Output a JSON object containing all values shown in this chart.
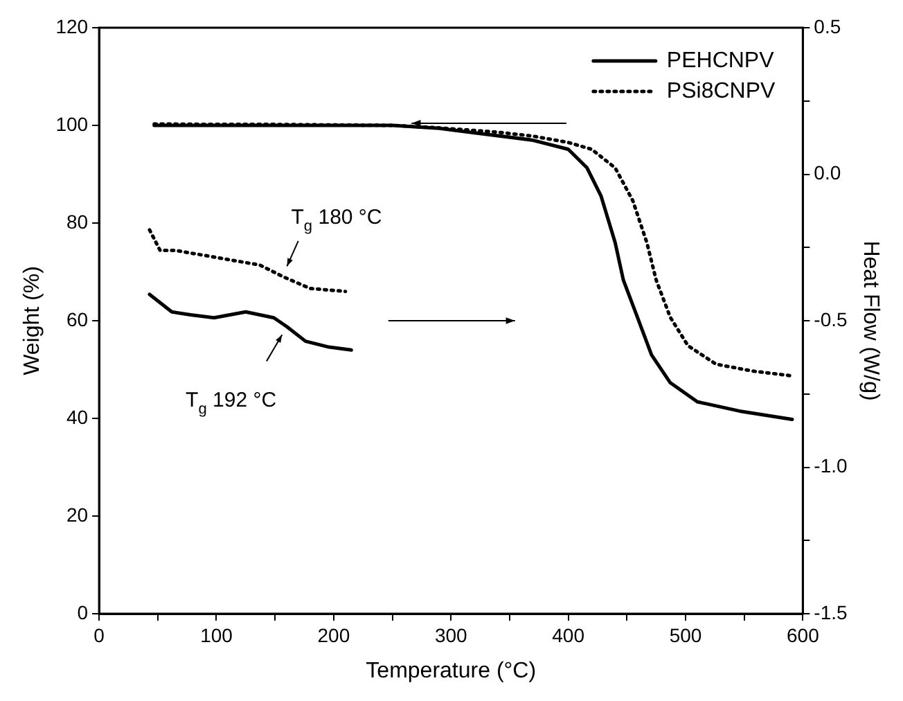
{
  "chart_data": {
    "type": "line",
    "xlabel": "Temperature (°C)",
    "ylabel": "Weight (%)",
    "y2label": "Heat Flow (W/g)",
    "xlim": [
      0,
      600
    ],
    "xticks": [
      0,
      {
        "value": 50,
        "label": null
      },
      100,
      {
        "value": 150,
        "label": null
      },
      200,
      {
        "value": 250,
        "label": null
      },
      300,
      {
        "value": 350,
        "label": null
      },
      400,
      {
        "value": 450,
        "label": null
      },
      500,
      {
        "value": 550,
        "label": null
      },
      600
    ],
    "ylim": [
      0,
      120
    ],
    "yticks": [
      0,
      20,
      40,
      60,
      80,
      100,
      120
    ],
    "y2lim": [
      -1.5,
      0.5
    ],
    "y2ticks": [
      {
        "value": -1.5,
        "label": "-1.5"
      },
      {
        "value": -1.25,
        "label": null
      },
      {
        "value": -1,
        "label": "-1.0"
      },
      {
        "value": -0.75,
        "label": null
      },
      {
        "value": -0.5,
        "label": "-0.5"
      },
      {
        "value": -0.25,
        "label": null
      },
      {
        "value": 0,
        "label": "0.0"
      },
      {
        "value": 0.25,
        "label": null
      },
      {
        "value": 0.5,
        "label": "0.5"
      }
    ],
    "legend": "top right",
    "annotations": [
      "T$_{g}$ 180 °C",
      "T$_{g}$ 192 °C"
    ],
    "series": [
      {
        "name": "PEHCNPV",
        "type": "line",
        "color": "#000000",
        "line_style": "solid",
        "x": [
          47,
          100,
          150,
          200,
          250,
          290,
          313,
          369,
          400,
          416,
          428,
          440,
          447,
          459,
          471,
          487,
          510,
          546,
          591
        ],
        "values": [
          100,
          100,
          100,
          100,
          100,
          99.4,
          98.7,
          97.0,
          95.1,
          91.3,
          85.5,
          76,
          68.3,
          60.7,
          53,
          47.3,
          43.4,
          41.5,
          39.8
        ]
      },
      {
        "name": "PSi8CNPV",
        "type": "line",
        "color": "#000000",
        "line_style": "dotted",
        "x": [
          47,
          100,
          150,
          200,
          250,
          290,
          340,
          370,
          400,
          420,
          440,
          455,
          467,
          475,
          487,
          502,
          526,
          557,
          591
        ],
        "values": [
          100.3,
          100.2,
          100.2,
          100.1,
          100,
          99.5,
          98.6,
          97.8,
          96.5,
          95.1,
          91.3,
          84.6,
          76,
          68.3,
          60.7,
          54.9,
          51.1,
          49.7,
          48.7
        ]
      },
      {
        "type": "line",
        "axis": "y2",
        "color": "#000000",
        "line_style": "solid",
        "x": [
          43,
          62,
          78,
          98,
          125,
          149,
          160,
          176,
          196,
          215
        ],
        "values": [
          -0.41,
          -0.47,
          -0.48,
          -0.49,
          -0.47,
          -0.49,
          -0.52,
          -0.57,
          -0.59,
          -0.6
        ]
      },
      {
        "type": "line",
        "axis": "y2",
        "color": "#000000",
        "line_style": "dotted",
        "x": [
          43,
          52,
          65,
          94,
          137,
          157,
          180,
          210
        ],
        "values": [
          -0.19,
          -0.26,
          -0.26,
          -0.28,
          -0.31,
          -0.35,
          -0.39,
          -0.4
        ]
      }
    ]
  }
}
